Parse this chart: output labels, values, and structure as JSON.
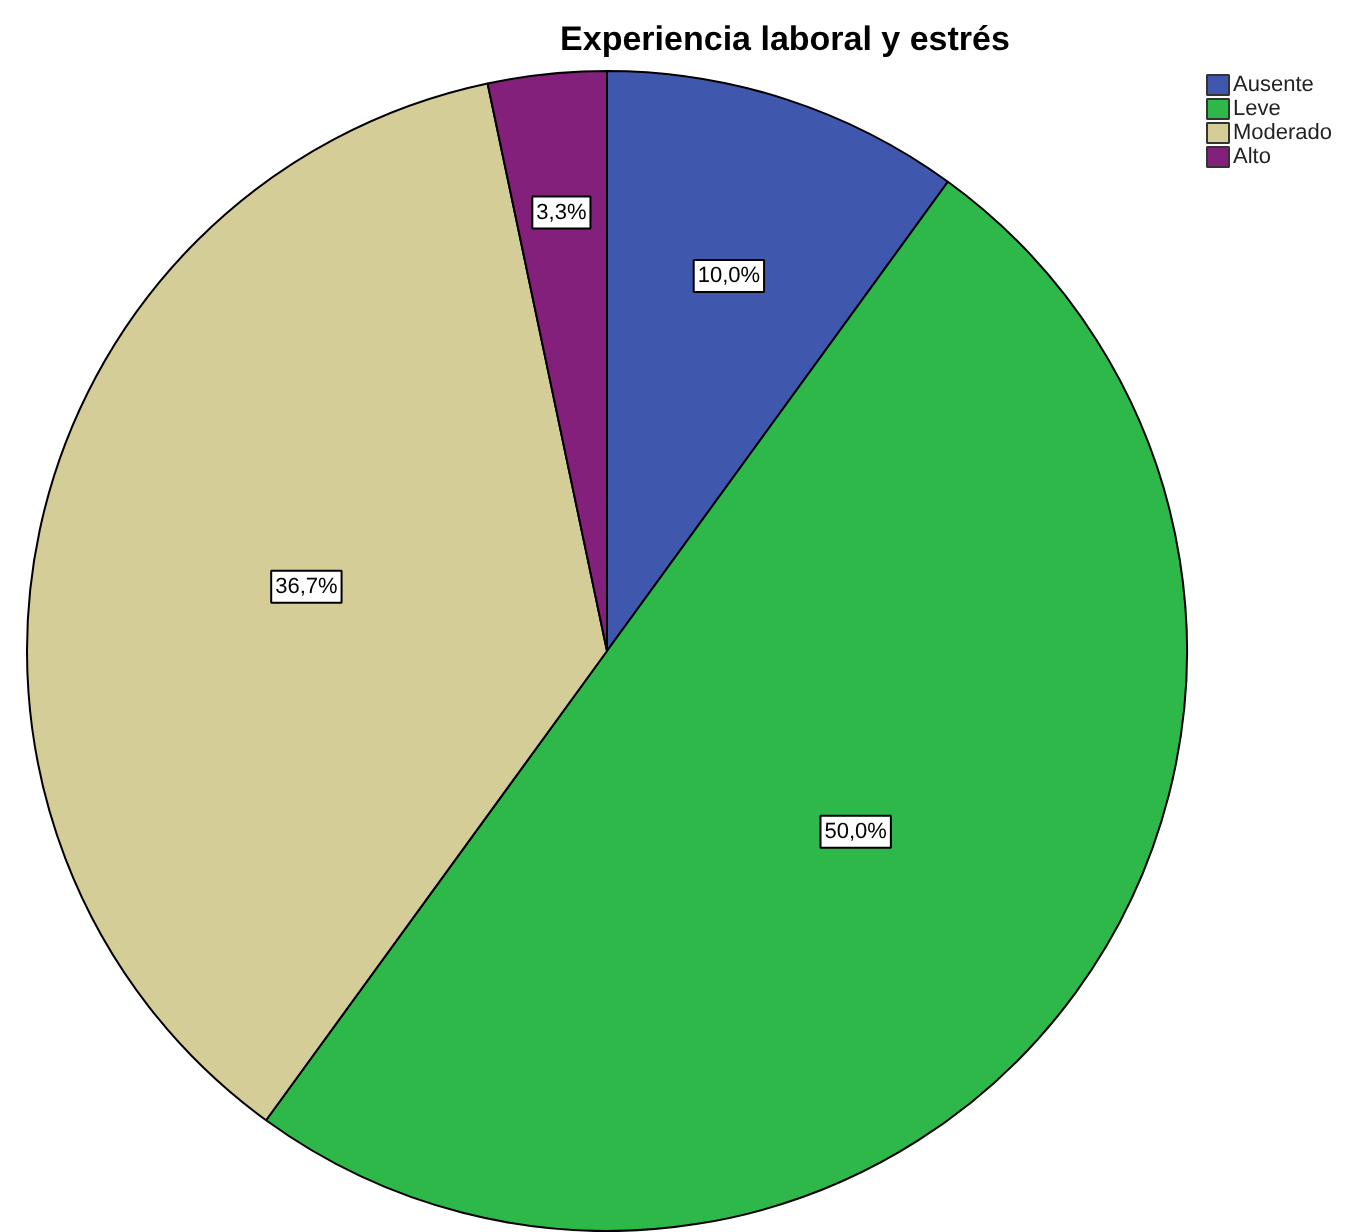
{
  "chart_data": {
    "type": "pie",
    "title": "Experiencia laboral y estrés",
    "categories": [
      "Ausente",
      "Leve",
      "Moderado",
      "Alto"
    ],
    "values": [
      10.0,
      50.0,
      36.7,
      3.3
    ],
    "colors": [
      "#3f57ad",
      "#2fb84a",
      "#d4cd98",
      "#83207c"
    ],
    "value_labels": [
      "10,0%",
      "50,0%",
      "36,7%",
      "3,3%"
    ],
    "legend": "top right"
  }
}
